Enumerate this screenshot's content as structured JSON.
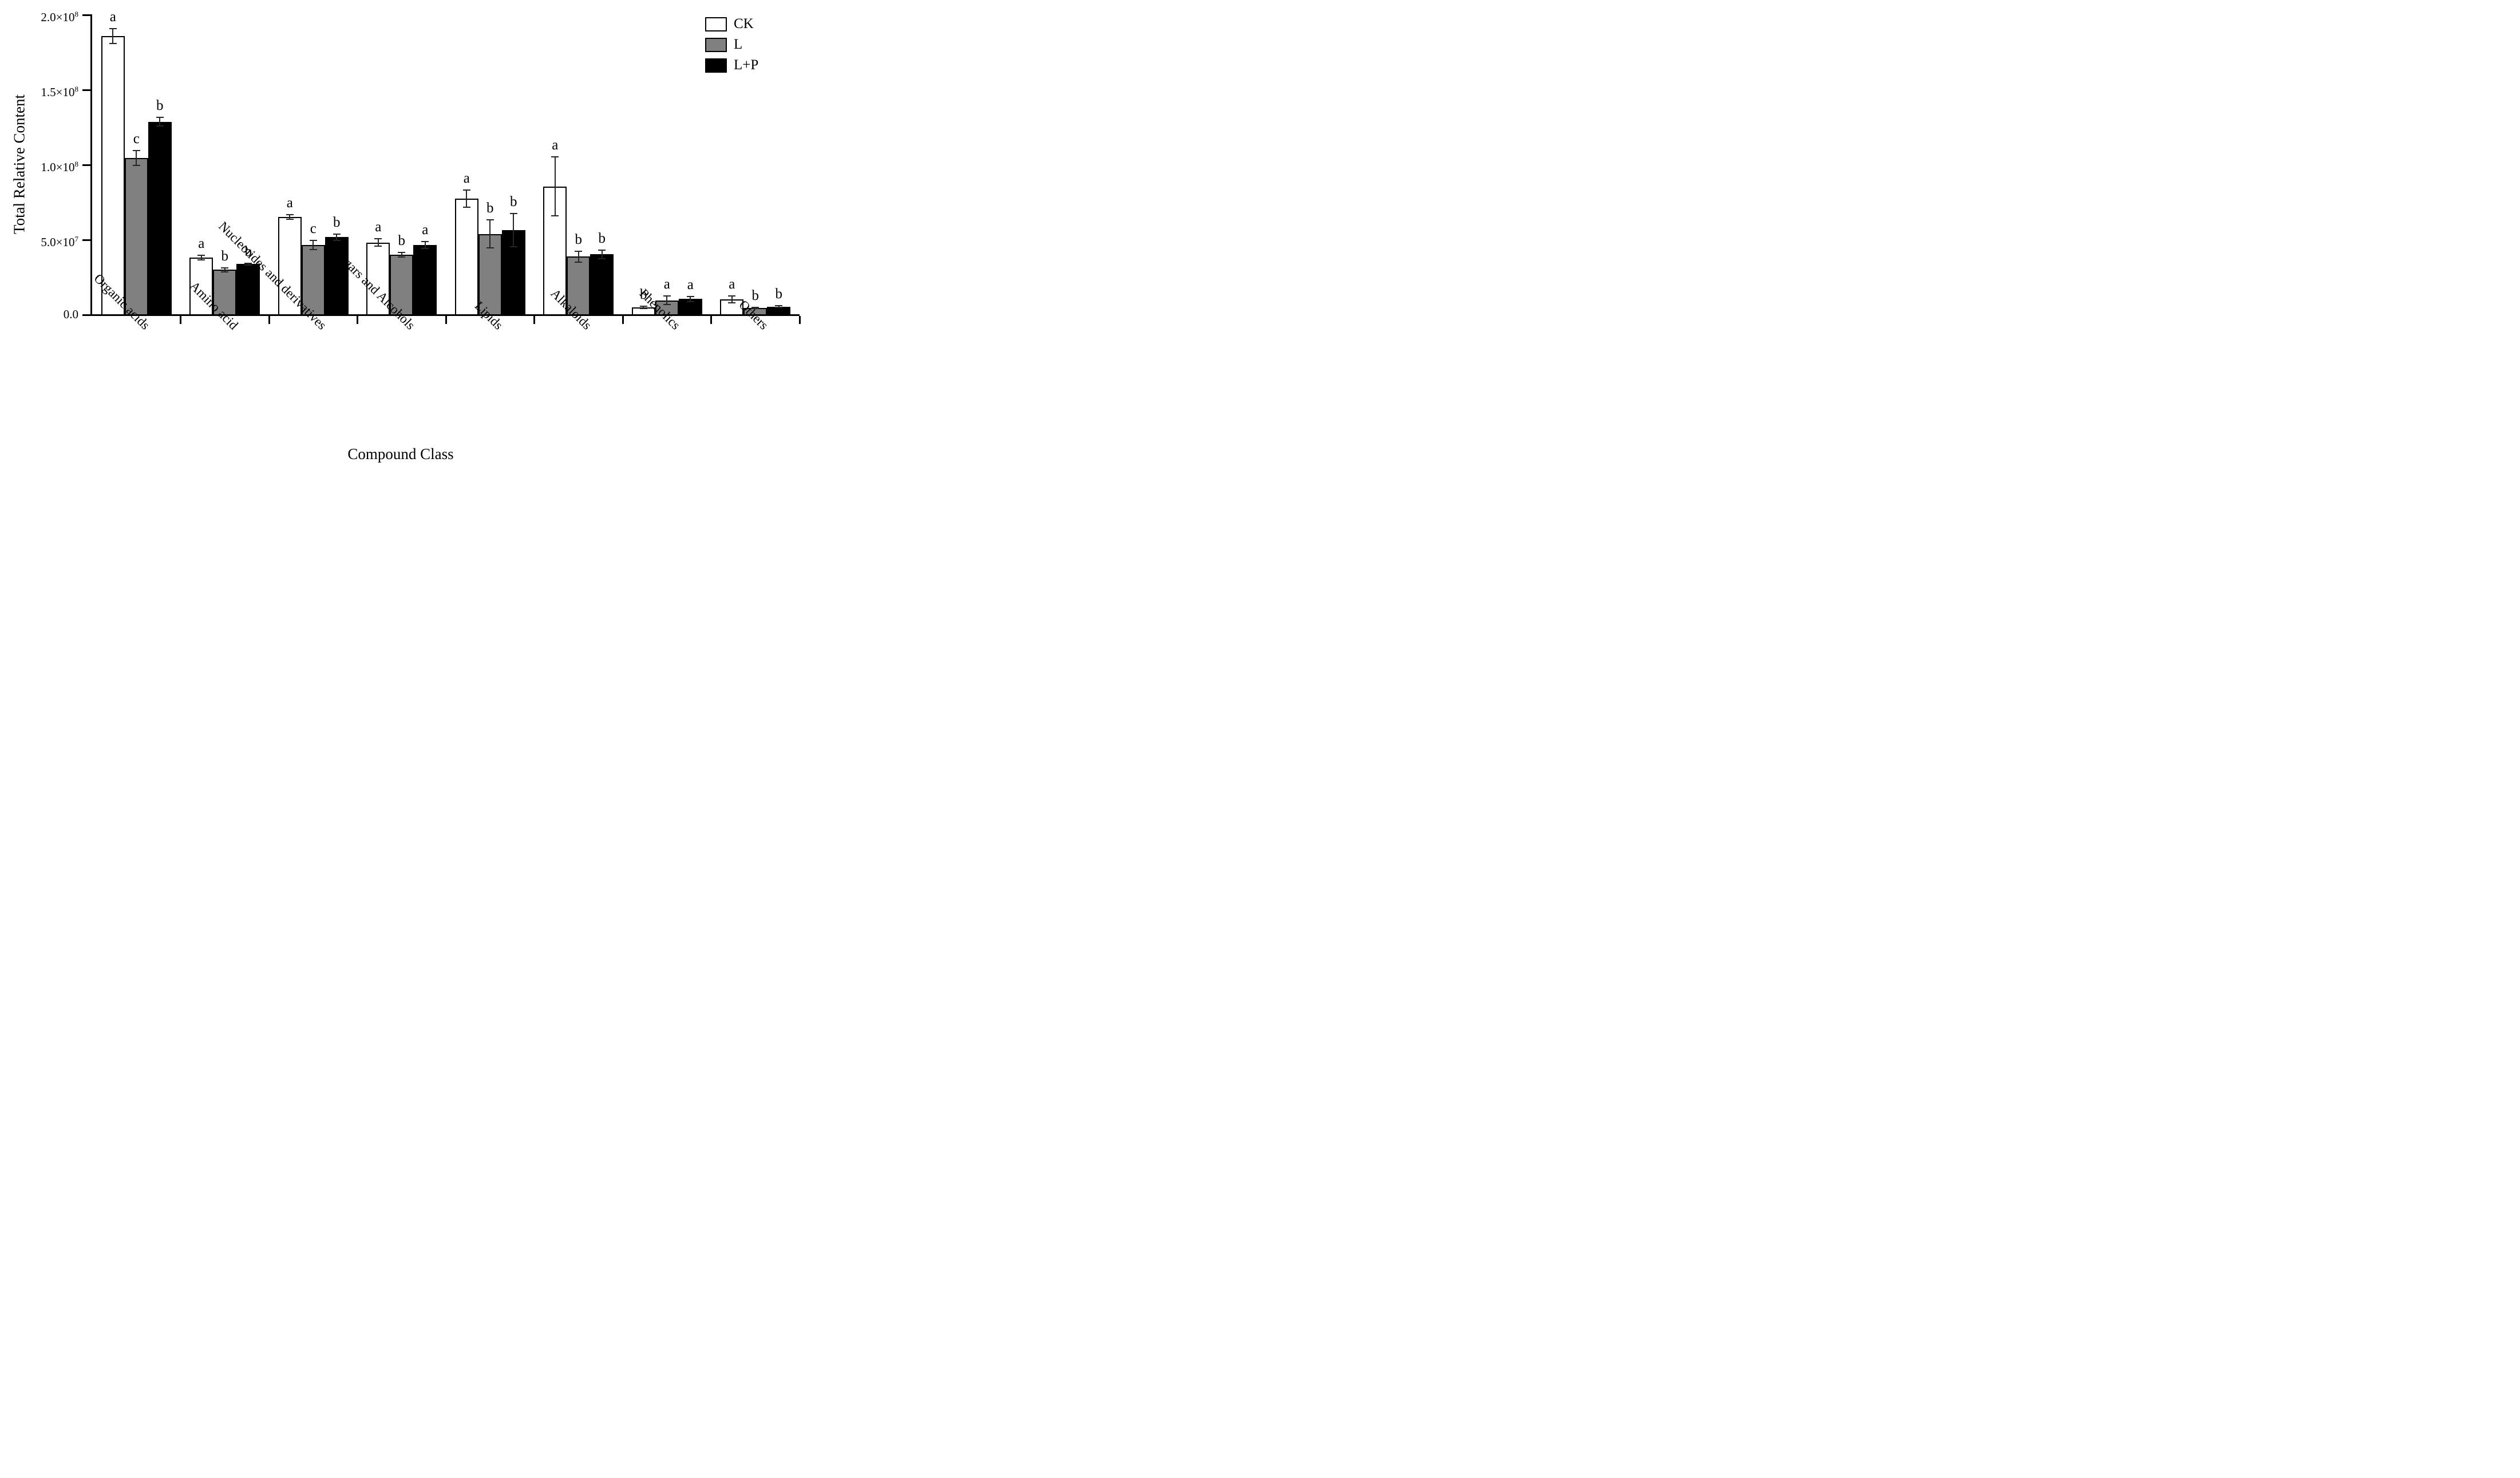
{
  "chart_data": {
    "type": "bar",
    "title": "",
    "xlabel": "Compound Class",
    "ylabel": "Total Relative Content",
    "ylim": [
      0,
      200000000
    ],
    "grid": false,
    "legend_position": "top-right",
    "yticks": [
      {
        "value": 0,
        "base": "0.0",
        "exp": ""
      },
      {
        "value": 50000000,
        "base": "5.0×10",
        "exp": "7"
      },
      {
        "value": 100000000,
        "base": "1.0×10",
        "exp": "8"
      },
      {
        "value": 150000000,
        "base": "1.5×10",
        "exp": "8"
      },
      {
        "value": 200000000,
        "base": "2.0×10",
        "exp": "8"
      }
    ],
    "categories": [
      "Organic acids",
      "Amino acid",
      "Nucleotides and derivatives",
      "Sugars and Alcohols",
      "Lipids",
      "Alkaloids",
      "Phenolics",
      "Others"
    ],
    "series": [
      {
        "name": "CK",
        "fill": "#ffffff",
        "values": [
          185500000,
          37800000,
          65000000,
          47900000,
          77200000,
          85300000,
          4700000,
          10100000
        ],
        "errors": [
          5000000,
          1700000,
          1500000,
          2600000,
          5800000,
          19500000,
          700000,
          2300000
        ],
        "letters": [
          "a",
          "a",
          "a",
          "a",
          "a",
          "a",
          "b",
          "a"
        ]
      },
      {
        "name": "L",
        "fill": "#808080",
        "values": [
          104200000,
          29600000,
          46100000,
          39600000,
          53600000,
          38400000,
          9300000,
          4200000
        ],
        "errors": [
          5000000,
          1200000,
          3100000,
          1500000,
          9500000,
          3600000,
          2900000,
          500000
        ],
        "letters": [
          "c",
          "b",
          "c",
          "b",
          "b",
          "b",
          "a",
          "b"
        ]
      },
      {
        "name": "L+P",
        "fill": "#000000",
        "values": [
          128400000,
          33500000,
          51500000,
          46200000,
          56200000,
          39900000,
          10200000,
          5000000
        ],
        "errors": [
          2800000,
          500000,
          2100000,
          2300000,
          11000000,
          2800000,
          1700000,
          600000
        ],
        "letters": [
          "b",
          "b",
          "b",
          "a",
          "b",
          "b",
          "a",
          "b"
        ]
      }
    ],
    "axis_color": "#000000",
    "error_bar_color": "#262626"
  }
}
